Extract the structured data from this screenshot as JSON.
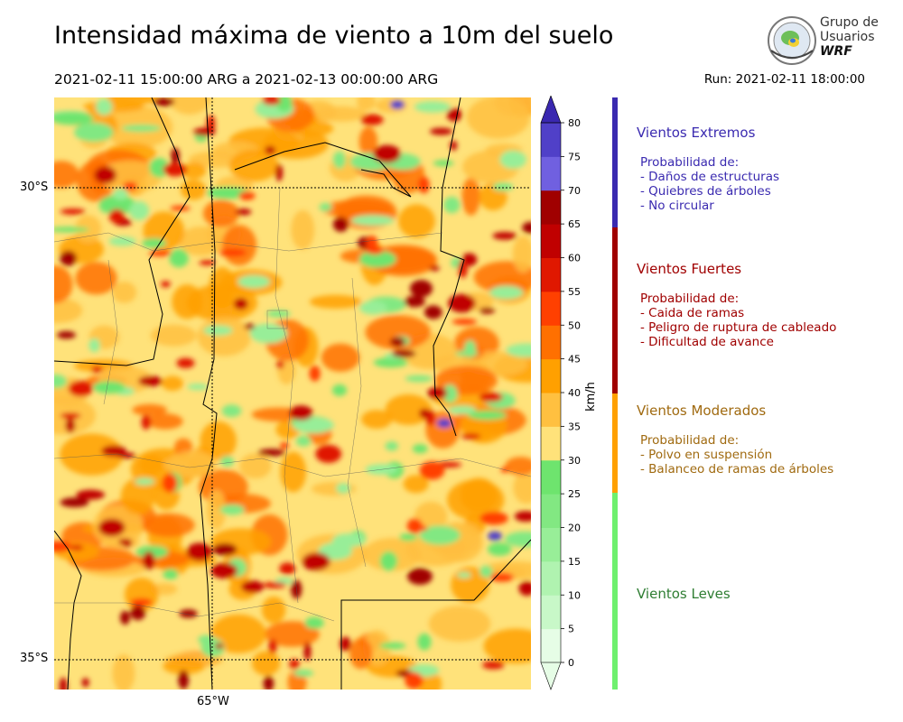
{
  "title": "Intensidad máxima de viento a 10m del suelo",
  "period": "2021-02-11 15:00:00 ARG  a  2021-02-13 00:00:00 ARG",
  "run": "Run: 2021-02-11 18:00:00",
  "logo": {
    "line1": "Grupo de",
    "line2": "Usuarios",
    "line3": "WRF"
  },
  "map": {
    "lat_labels": [
      "30°S",
      "35°S"
    ],
    "lon_labels": [
      "65°W"
    ]
  },
  "colorbar": {
    "unit": "km/h",
    "ticks": [
      "0",
      "5",
      "10",
      "15",
      "20",
      "25",
      "30",
      "35",
      "40",
      "45",
      "50",
      "55",
      "60",
      "65",
      "70",
      "75",
      "80"
    ],
    "colors": [
      "#e6fde6",
      "#c8f8c8",
      "#b0f3b0",
      "#98ee98",
      "#82e882",
      "#6ee46e",
      "#ffe27a",
      "#ffc040",
      "#ffa000",
      "#ff7000",
      "#ff4000",
      "#e01800",
      "#c00000",
      "#a00000",
      "#7060e0",
      "#5040c8",
      "#3a28b0"
    ]
  },
  "categories": [
    {
      "title": "Vientos Extremos",
      "color": "#3a2ab0",
      "bar_color": "#3a2ab0",
      "lines": [
        "Probabilidad de:",
        "- Daños de estructuras",
        "- Quiebres de árboles",
        "- No circular"
      ]
    },
    {
      "title": "Vientos Fuertes",
      "color": "#a00000",
      "bar_color": "#a00000",
      "lines": [
        "Probabilidad de:",
        "- Caida de ramas",
        "- Peligro de ruptura de cableado",
        "- Dificultad de avance"
      ]
    },
    {
      "title": "Vientos Moderados",
      "color": "#a06a10",
      "bar_color": "#ffa000",
      "lines": [
        "Probabilidad de:",
        "- Polvo en suspensión",
        "- Balanceo de ramas de árboles"
      ]
    },
    {
      "title": "Vientos Leves",
      "color": "#2e7d32",
      "bar_color": "#6ef06e",
      "lines": []
    }
  ]
}
